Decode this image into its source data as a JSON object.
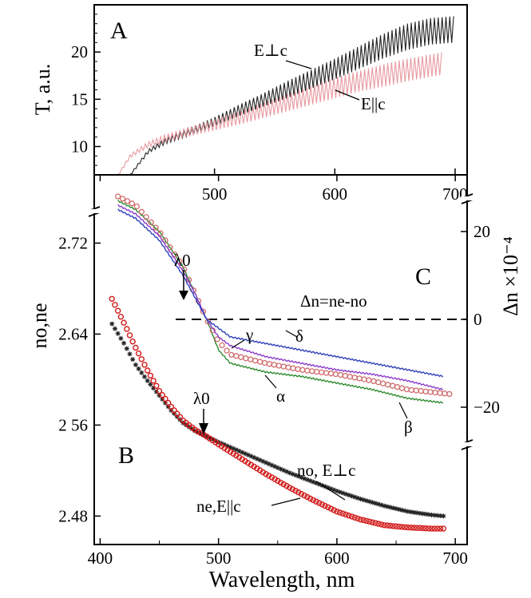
{
  "chart_data": [
    {
      "panel": "A",
      "type": "line",
      "ylabel": "T, a.u.",
      "xlabel": "",
      "xlim": [
        400,
        710
      ],
      "ylim": [
        7,
        25
      ],
      "xticks": [
        "500",
        "600",
        "700"
      ],
      "yticks": [
        "10",
        "15",
        "20"
      ],
      "series": [
        {
          "name": "E⊥c",
          "color": "#222222",
          "x": [
            430,
            445,
            460,
            480,
            500,
            520,
            540,
            560,
            580,
            600,
            620,
            640,
            660,
            680,
            700
          ],
          "y": [
            7.0,
            9.5,
            10.6,
            11.6,
            12.6,
            13.8,
            14.9,
            16.0,
            17.1,
            18.2,
            19.4,
            20.6,
            21.6,
            22.2,
            22.4
          ],
          "osc": [
            0.1,
            0.2,
            0.3,
            0.4,
            0.5,
            0.6,
            0.7,
            0.9,
            1.0,
            1.1,
            1.2,
            1.3,
            1.4,
            1.4,
            1.4
          ]
        },
        {
          "name": "E||c",
          "color": "#e89aa0",
          "x": [
            420,
            430,
            445,
            460,
            480,
            500,
            520,
            540,
            560,
            580,
            600,
            620,
            640,
            660,
            690
          ],
          "y": [
            7.0,
            9.0,
            10.2,
            10.9,
            11.6,
            12.3,
            13.0,
            13.8,
            14.6,
            15.4,
            16.2,
            16.9,
            17.5,
            18.1,
            18.8
          ],
          "osc": [
            0.1,
            0.2,
            0.3,
            0.4,
            0.5,
            0.6,
            0.7,
            0.8,
            0.9,
            1.0,
            1.1,
            1.1,
            1.2,
            1.2,
            1.2
          ]
        }
      ],
      "annotations": [
        "A",
        "E⊥c",
        "E||c"
      ]
    },
    {
      "panel": "B",
      "type": "scatter",
      "ylabel": "no,ne",
      "xlabel": "Wavelength, nm",
      "xlim": [
        395,
        710
      ],
      "ylim": [
        2.455,
        2.78
      ],
      "xticks": [
        "400",
        "500",
        "600",
        "700"
      ],
      "yticks": [
        "2.48",
        "2 56",
        "2.64",
        "2.72"
      ],
      "series": [
        {
          "name": "no, E⊥c",
          "color": "#222222",
          "marker": "star",
          "x": [
            410,
            420,
            430,
            440,
            450,
            460,
            470,
            480,
            490,
            500,
            520,
            540,
            560,
            580,
            600,
            620,
            640,
            660,
            680,
            690
          ],
          "y": [
            2.649,
            2.632,
            2.613,
            2.599,
            2.586,
            2.573,
            2.562,
            2.555,
            2.55,
            2.545,
            2.536,
            2.527,
            2.518,
            2.51,
            2.502,
            2.495,
            2.489,
            2.484,
            2.481,
            2.48
          ]
        },
        {
          "name": "ne,E||c",
          "color": "#d21a1a",
          "marker": "circle",
          "x": [
            410,
            420,
            430,
            440,
            450,
            460,
            470,
            480,
            490,
            500,
            520,
            540,
            560,
            580,
            600,
            620,
            640,
            660,
            680,
            690
          ],
          "y": [
            2.671,
            2.65,
            2.628,
            2.608,
            2.59,
            2.576,
            2.564,
            2.556,
            2.55,
            2.543,
            2.53,
            2.517,
            2.505,
            2.494,
            2.484,
            2.477,
            2.472,
            2.47,
            2.469,
            2.469
          ]
        }
      ],
      "annotations": [
        "B",
        "λ0",
        "no, E⊥c",
        "ne,E||c"
      ]
    },
    {
      "panel": "C",
      "type": "line",
      "ylabel": "Δn ×10⁻⁴",
      "y2lim": [
        -29,
        35
      ],
      "y2ticks": [
        "20",
        "0",
        "−20"
      ],
      "dashed_zero_label": "Δn=ne-no",
      "series": [
        {
          "name": "α",
          "color": "#2e8b2e",
          "x": [
            415,
            430,
            450,
            470,
            480,
            490,
            500,
            510,
            540,
            570,
            600,
            630,
            660,
            690
          ],
          "y": [
            27,
            25,
            20,
            12,
            6,
            0,
            -7,
            -10,
            -12,
            -13,
            -14.5,
            -16,
            -18,
            -19
          ]
        },
        {
          "name": "β",
          "color": "#d06a6a",
          "marker": "circle",
          "x": [
            415,
            430,
            450,
            470,
            480,
            490,
            500,
            510,
            540,
            570,
            600,
            630,
            660,
            695
          ],
          "y": [
            28,
            26,
            20,
            12,
            6,
            0,
            -5,
            -8,
            -10,
            -11.5,
            -12.5,
            -14,
            -16,
            -17
          ]
        },
        {
          "name": "γ",
          "color": "#8a3acb",
          "x": [
            415,
            430,
            450,
            470,
            480,
            490,
            500,
            510,
            540,
            570,
            600,
            630,
            660,
            690
          ],
          "y": [
            26,
            24,
            19,
            11,
            6,
            0,
            -4,
            -6,
            -8.5,
            -10,
            -11.5,
            -12.5,
            -14,
            -16
          ]
        },
        {
          "name": "δ",
          "color": "#2c3fb8",
          "x": [
            415,
            430,
            450,
            470,
            480,
            490,
            500,
            510,
            540,
            570,
            600,
            630,
            660,
            690
          ],
          "y": [
            25,
            23,
            18,
            10,
            5,
            0,
            -2,
            -4,
            -5.5,
            -7,
            -8.5,
            -10,
            -11.5,
            -13
          ]
        }
      ],
      "annotations": [
        "C",
        "λ0",
        "Δn=ne-no",
        "α",
        "β",
        "γ",
        "δ"
      ]
    }
  ],
  "labels": {
    "panel_a": "A",
    "panel_b": "B",
    "panel_c": "C",
    "a_ylabel": "T, a.u.",
    "a_perp": "E⊥c",
    "a_par": "E||c",
    "b_ylabel": "no,ne",
    "c_ylabel": "Δn ×10⁻⁴",
    "xlabel": "Wavelength, nm",
    "lambda0": "λ0",
    "dn_eq": "Δn=ne-no",
    "b_no": "no, E⊥c",
    "b_ne": "ne,E||c",
    "alpha": "α",
    "beta": "β",
    "gamma": "γ",
    "delta": "δ"
  }
}
